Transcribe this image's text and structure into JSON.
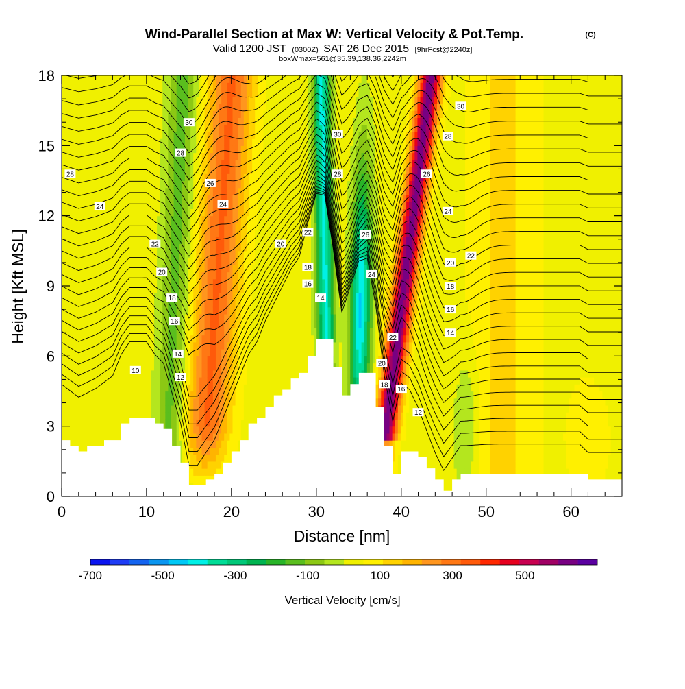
{
  "chart_data": {
    "type": "heatmap",
    "title": "Wind-Parallel Section at Max W: Vertical Velocity & Pot.Temp.",
    "title_mark": "(C)",
    "subtitle_parts": [
      "Valid 1200 JST",
      "(0300Z)",
      "SAT 26 Dec 2015",
      "[9hrFcst@2240z]"
    ],
    "subtitle2": "boxWmax=561@35.39,138.36,2242m",
    "xlabel": "Distance [nm]",
    "ylabel": "Height [Kft MSL]",
    "xlim": [
      0,
      66
    ],
    "ylim": [
      0,
      18
    ],
    "xticks": [
      0,
      10,
      20,
      30,
      40,
      50,
      60
    ],
    "yticks": [
      0,
      3,
      6,
      9,
      12,
      15,
      18
    ],
    "colorbar": {
      "label": "Vertical Velocity [cm/s]",
      "range": [
        -700,
        700
      ],
      "tick_labels": [
        "-700",
        "-500",
        "-300",
        "-100",
        "100",
        "300",
        "500"
      ],
      "tick_values": [
        -700,
        -500,
        -300,
        -100,
        100,
        300,
        500
      ],
      "colors": [
        "#0a14f0",
        "#1e3cf5",
        "#1464f0",
        "#0a96f0",
        "#00c8f5",
        "#00f0e6",
        "#00dc96",
        "#00c878",
        "#00b450",
        "#28b428",
        "#5abe1e",
        "#8cc814",
        "#b4e61e",
        "#f0f000",
        "#fff000",
        "#ffd200",
        "#ffb400",
        "#ff961e",
        "#ff7814",
        "#ff5a0a",
        "#ff2800",
        "#e6001e",
        "#c80050",
        "#a00064",
        "#780082",
        "#5a00a0"
      ]
    },
    "velocity_features": [
      {
        "x": 18.0,
        "value": 300,
        "kind": "updraft"
      },
      {
        "x": 12.0,
        "value": -150,
        "kind": "downdraft"
      },
      {
        "x": 32.0,
        "value": -500,
        "kind": "downdraft"
      },
      {
        "x": 37.0,
        "value": -550,
        "kind": "downdraft"
      },
      {
        "x": 41.0,
        "value": 561,
        "kind": "updraft"
      },
      {
        "x": 52.0,
        "value": 80,
        "kind": "weak updraft"
      }
    ],
    "terrain_profile": {
      "x": [
        0,
        2,
        4,
        6,
        7,
        8,
        10,
        11,
        12,
        14,
        15,
        16,
        17,
        18,
        19,
        20,
        21,
        22,
        23,
        24,
        25,
        26,
        27,
        28,
        29,
        30,
        31,
        32,
        33,
        34,
        35,
        36,
        37,
        38,
        39,
        40,
        41,
        42,
        43,
        44,
        45,
        46,
        47,
        48,
        50,
        55,
        61,
        62,
        66
      ],
      "height_kft": [
        2.3,
        2.0,
        2.2,
        2.5,
        3.0,
        3.3,
        3.3,
        3.0,
        2.8,
        1.4,
        0.4,
        0.4,
        0.7,
        1.0,
        1.5,
        2.0,
        2.5,
        3.0,
        3.3,
        3.8,
        4.2,
        4.6,
        5.0,
        5.3,
        6.1,
        6.8,
        6.8,
        5.6,
        4.2,
        4.8,
        5.3,
        5.2,
        3.9,
        2.1,
        1.0,
        2.0,
        2.0,
        1.7,
        1.2,
        0.7,
        0.3,
        0.6,
        0.9,
        0.9,
        0.9,
        0.9,
        0.9,
        0.7,
        0.7
      ]
    },
    "isentropes": {
      "label_unit": "pot.temp",
      "labels": [
        {
          "text": "30",
          "x": 15.0,
          "y": 16.0
        },
        {
          "text": "28",
          "x": 14.0,
          "y": 14.7
        },
        {
          "text": "28",
          "x": 1.0,
          "y": 13.8
        },
        {
          "text": "26",
          "x": 17.5,
          "y": 13.4
        },
        {
          "text": "24",
          "x": 4.5,
          "y": 12.4
        },
        {
          "text": "24",
          "x": 19.0,
          "y": 12.5
        },
        {
          "text": "22",
          "x": 11.0,
          "y": 10.8
        },
        {
          "text": "20",
          "x": 11.8,
          "y": 9.6
        },
        {
          "text": "18",
          "x": 13.0,
          "y": 8.5
        },
        {
          "text": "16",
          "x": 13.3,
          "y": 7.5
        },
        {
          "text": "14",
          "x": 13.7,
          "y": 6.1
        },
        {
          "text": "12",
          "x": 14.0,
          "y": 5.1
        },
        {
          "text": "10",
          "x": 8.7,
          "y": 5.4
        },
        {
          "text": "20",
          "x": 25.8,
          "y": 10.8
        },
        {
          "text": "22",
          "x": 29.0,
          "y": 11.3
        },
        {
          "text": "18",
          "x": 29.0,
          "y": 9.8
        },
        {
          "text": "16",
          "x": 29.0,
          "y": 9.1
        },
        {
          "text": "14",
          "x": 30.5,
          "y": 8.5
        },
        {
          "text": "30",
          "x": 32.5,
          "y": 15.5
        },
        {
          "text": "28",
          "x": 32.5,
          "y": 13.8
        },
        {
          "text": "26",
          "x": 35.8,
          "y": 11.2
        },
        {
          "text": "24",
          "x": 36.5,
          "y": 9.5
        },
        {
          "text": "22",
          "x": 39.0,
          "y": 6.8
        },
        {
          "text": "20",
          "x": 37.7,
          "y": 5.7
        },
        {
          "text": "18",
          "x": 38.0,
          "y": 4.8
        },
        {
          "text": "16",
          "x": 40.0,
          "y": 4.6
        },
        {
          "text": "12",
          "x": 42.0,
          "y": 3.6
        },
        {
          "text": "30",
          "x": 47.0,
          "y": 16.7
        },
        {
          "text": "28",
          "x": 45.5,
          "y": 15.4
        },
        {
          "text": "26",
          "x": 43.0,
          "y": 13.8
        },
        {
          "text": "24",
          "x": 45.5,
          "y": 12.2
        },
        {
          "text": "20",
          "x": 45.8,
          "y": 10.0
        },
        {
          "text": "22",
          "x": 48.2,
          "y": 10.3
        },
        {
          "text": "18",
          "x": 45.8,
          "y": 9.0
        },
        {
          "text": "16",
          "x": 45.8,
          "y": 8.0
        },
        {
          "text": "14",
          "x": 45.8,
          "y": 7.0
        }
      ]
    }
  }
}
